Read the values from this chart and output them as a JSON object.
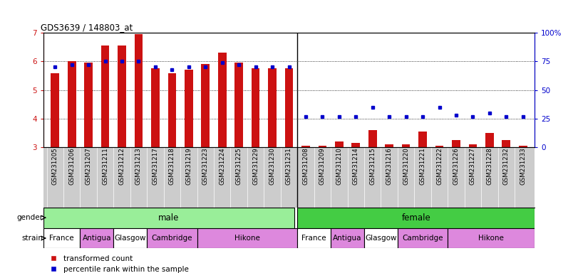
{
  "title": "GDS3639 / 148803_at",
  "samples_male": [
    "GSM231205",
    "GSM231206",
    "GSM231207",
    "GSM231211",
    "GSM231212",
    "GSM231213",
    "GSM231217",
    "GSM231218",
    "GSM231219",
    "GSM231223",
    "GSM231224",
    "GSM231225",
    "GSM231229",
    "GSM231230",
    "GSM231231"
  ],
  "samples_female": [
    "GSM231208",
    "GSM231209",
    "GSM231210",
    "GSM231214",
    "GSM231215",
    "GSM231216",
    "GSM231220",
    "GSM231221",
    "GSM231222",
    "GSM231226",
    "GSM231227",
    "GSM231228",
    "GSM231232",
    "GSM231233"
  ],
  "bar_values_male": [
    5.6,
    6.0,
    5.95,
    6.55,
    6.55,
    6.95,
    5.75,
    5.6,
    5.7,
    5.9,
    6.3,
    5.97,
    5.75,
    5.75,
    5.75
  ],
  "bar_values_female": [
    3.05,
    3.05,
    3.2,
    3.15,
    3.6,
    3.1,
    3.1,
    3.55,
    3.05,
    3.25,
    3.1,
    3.5,
    3.25,
    3.05
  ],
  "pct_male": [
    70,
    72,
    72,
    75,
    75,
    75,
    70,
    68,
    70,
    70,
    74,
    72,
    70,
    70,
    70
  ],
  "pct_female": [
    27,
    27,
    27,
    27,
    35,
    27,
    27,
    27,
    35,
    28,
    27,
    30,
    27,
    27
  ],
  "baseline": 3.0,
  "ylim_left": [
    3,
    7
  ],
  "ylim_right": [
    0,
    100
  ],
  "yticks_left": [
    3,
    4,
    5,
    6,
    7
  ],
  "yticks_right": [
    0,
    25,
    50,
    75,
    100
  ],
  "bar_color": "#cc1111",
  "dot_color": "#0000cc",
  "male_bg": "#99ee99",
  "female_bg": "#44cc44",
  "tick_bg": "#cccccc",
  "strain_info_male": [
    [
      "France",
      0,
      2,
      "#ffffff"
    ],
    [
      "Antigua",
      2,
      4,
      "#dd88dd"
    ],
    [
      "Glasgow",
      4,
      6,
      "#ffffff"
    ],
    [
      "Cambridge",
      6,
      9,
      "#dd88dd"
    ],
    [
      "Hikone",
      9,
      15,
      "#dd88dd"
    ]
  ],
  "strain_info_female": [
    [
      "France",
      15,
      17,
      "#ffffff"
    ],
    [
      "Antigua",
      17,
      19,
      "#dd88dd"
    ],
    [
      "Glasgow",
      19,
      21,
      "#ffffff"
    ],
    [
      "Cambridge",
      21,
      24,
      "#dd88dd"
    ],
    [
      "Hikone",
      24,
      29,
      "#dd88dd"
    ]
  ],
  "grid_color": "#000000"
}
